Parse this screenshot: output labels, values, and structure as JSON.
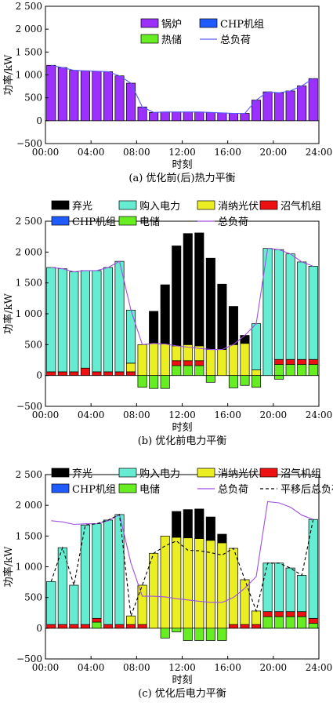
{
  "chart_data": [
    {
      "type": "bar",
      "caption": "(a) 优化前(后)热力平衡",
      "xlabel": "时刻",
      "ylabel": "功率/kW",
      "ylim": [
        -500,
        2500
      ],
      "yticks": [
        -500,
        0,
        500,
        1000,
        1500,
        2000,
        2500
      ],
      "ytick_labels": [
        "−500",
        "0",
        "500",
        "1 000",
        "1 500",
        "2 000",
        "2 500"
      ],
      "xticks": [
        0,
        4,
        8,
        12,
        16,
        20,
        24
      ],
      "xtick_labels": [
        "00:00",
        "04:00",
        "08:00",
        "12:00",
        "16:00",
        "20:00",
        "24:00"
      ],
      "legend_cols": 2,
      "legend": [
        {
          "key": "boiler",
          "label": "锅炉",
          "kind": "bar",
          "color": "#9b30ff"
        },
        {
          "key": "chp",
          "label": "CHP机组",
          "kind": "bar",
          "color": "#1f5bff"
        },
        {
          "key": "storage",
          "label": "热储",
          "kind": "bar",
          "color": "#66ee22"
        },
        {
          "key": "total",
          "label": "总负荷",
          "kind": "line",
          "color": "#5a5aff"
        }
      ],
      "stack_series": [
        {
          "key": "boiler",
          "color": "#9b30ff",
          "values": [
            1210,
            1160,
            1100,
            1090,
            1080,
            1070,
            980,
            820,
            300,
            180,
            190,
            190,
            190,
            190,
            180,
            170,
            160,
            160,
            450,
            630,
            610,
            650,
            760,
            920
          ]
        },
        {
          "key": "chp",
          "color": "#1f5bff",
          "values": [
            0,
            0,
            0,
            0,
            0,
            0,
            0,
            0,
            0,
            0,
            0,
            0,
            0,
            0,
            0,
            0,
            0,
            0,
            0,
            0,
            0,
            0,
            0,
            0
          ]
        }
      ],
      "neg_series": [
        {
          "key": "storage",
          "color": "#66ee22",
          "values": [
            0,
            0,
            0,
            0,
            0,
            0,
            0,
            0,
            0,
            0,
            0,
            0,
            0,
            0,
            0,
            0,
            0,
            0,
            0,
            0,
            0,
            0,
            0,
            0
          ]
        }
      ],
      "line_series": [
        {
          "key": "total",
          "color": "#5a5aff",
          "dash": "",
          "values": [
            1210,
            1160,
            1100,
            1090,
            1080,
            1070,
            980,
            820,
            300,
            180,
            190,
            190,
            190,
            190,
            180,
            170,
            160,
            160,
            450,
            630,
            610,
            650,
            760,
            920
          ]
        }
      ]
    },
    {
      "type": "bar",
      "caption": "(b) 优化前电力平衡",
      "xlabel": "时刻",
      "ylabel": "功率/kW",
      "ylim": [
        -500,
        2500
      ],
      "yticks": [
        -500,
        0,
        500,
        1000,
        1500,
        2000,
        2500
      ],
      "ytick_labels": [
        "−500",
        "0",
        "500",
        "1 000",
        "1 500",
        "2 000",
        "2 500"
      ],
      "xticks": [
        0,
        4,
        8,
        12,
        16,
        20,
        24
      ],
      "xtick_labels": [
        "00:00",
        "04:00",
        "08:00",
        "12:00",
        "16:00",
        "20:00",
        "24:00"
      ],
      "legend_cols": 4,
      "legend": [
        {
          "key": "curtail",
          "label": "弃光",
          "kind": "bar",
          "color": "#000000"
        },
        {
          "key": "grid",
          "label": "购入电力",
          "kind": "bar",
          "color": "#66ecd0"
        },
        {
          "key": "pv",
          "label": "消纳光伏",
          "kind": "bar",
          "color": "#eaee22"
        },
        {
          "key": "biogas",
          "label": "沼气机组",
          "kind": "bar",
          "color": "#ee1111"
        },
        {
          "key": "chp",
          "label": "CHP机组",
          "kind": "bar",
          "color": "#1f5bff"
        },
        {
          "key": "battery",
          "label": "电储",
          "kind": "bar",
          "color": "#66ee22"
        },
        {
          "key": "total",
          "label": "总负荷",
          "kind": "line",
          "color": "#a050e0"
        }
      ],
      "stack_series": [
        {
          "key": "battery",
          "color": "#66ee22",
          "values": [
            0,
            0,
            0,
            0,
            0,
            0,
            0,
            0,
            0,
            0,
            0,
            160,
            160,
            160,
            0,
            0,
            0,
            0,
            0,
            0,
            180,
            180,
            180,
            180
          ]
        },
        {
          "key": "biogas",
          "color": "#ee1111",
          "values": [
            60,
            60,
            60,
            120,
            60,
            60,
            60,
            60,
            0,
            0,
            0,
            80,
            80,
            80,
            0,
            0,
            0,
            0,
            0,
            0,
            80,
            80,
            80,
            80
          ]
        },
        {
          "key": "pv",
          "color": "#eaee22",
          "values": [
            0,
            0,
            0,
            0,
            0,
            0,
            0,
            140,
            500,
            520,
            510,
            240,
            260,
            240,
            420,
            420,
            500,
            520,
            90,
            0,
            0,
            0,
            0,
            0
          ]
        },
        {
          "key": "grid",
          "color": "#66ecd0",
          "values": [
            1690,
            1670,
            1620,
            1580,
            1640,
            1690,
            1790,
            860,
            0,
            0,
            0,
            0,
            0,
            0,
            0,
            0,
            0,
            0,
            750,
            2060,
            1780,
            1710,
            1580,
            1510
          ]
        },
        {
          "key": "curtail",
          "color": "#000000",
          "values": [
            0,
            0,
            0,
            0,
            0,
            0,
            0,
            0,
            0,
            520,
            960,
            1620,
            1800,
            1830,
            1480,
            1060,
            620,
            130,
            0,
            0,
            0,
            0,
            0,
            0
          ]
        }
      ],
      "neg_series": [
        {
          "key": "battery",
          "color": "#66ee22",
          "values": [
            0,
            0,
            0,
            0,
            0,
            0,
            0,
            0,
            -190,
            -210,
            -210,
            0,
            0,
            0,
            -110,
            0,
            -200,
            -160,
            -190,
            0,
            -60,
            0,
            0,
            0
          ]
        }
      ],
      "line_series": [
        {
          "key": "total",
          "color": "#a050e0",
          "dash": "",
          "values": [
            1750,
            1730,
            1680,
            1700,
            1700,
            1750,
            1850,
            1060,
            500,
            520,
            510,
            480,
            460,
            440,
            420,
            420,
            500,
            650,
            840,
            2060,
            2040,
            1970,
            1840,
            1770
          ]
        }
      ]
    },
    {
      "type": "bar",
      "caption": "(c) 优化后电力平衡",
      "xlabel": "时刻",
      "ylabel": "功率/kW",
      "ylim": [
        -500,
        2500
      ],
      "yticks": [
        -500,
        0,
        500,
        1000,
        1500,
        2000,
        2500
      ],
      "ytick_labels": [
        "−500",
        "0",
        "500",
        "1 000",
        "1 500",
        "2 000",
        "2 500"
      ],
      "xticks": [
        0,
        4,
        8,
        12,
        16,
        20,
        24
      ],
      "xtick_labels": [
        "00:00",
        "04:00",
        "08:00",
        "12:00",
        "16:00",
        "20:00",
        "24:00"
      ],
      "legend_cols": 4,
      "legend": [
        {
          "key": "curtail",
          "label": "弃光",
          "kind": "bar",
          "color": "#000000"
        },
        {
          "key": "grid",
          "label": "购入电力",
          "kind": "bar",
          "color": "#66ecd0"
        },
        {
          "key": "pv",
          "label": "消纳光伏",
          "kind": "bar",
          "color": "#eaee22"
        },
        {
          "key": "biogas",
          "label": "沼气机组",
          "kind": "bar",
          "color": "#ee1111"
        },
        {
          "key": "chp",
          "label": "CHP机组",
          "kind": "bar",
          "color": "#1f5bff"
        },
        {
          "key": "battery",
          "label": "电储",
          "kind": "bar",
          "color": "#66ee22"
        },
        {
          "key": "total",
          "label": "总负荷",
          "kind": "line",
          "color": "#a050e0"
        },
        {
          "key": "shifted",
          "label": "平移后总负荷",
          "kind": "dash",
          "color": "#000000"
        }
      ],
      "stack_series": [
        {
          "key": "battery",
          "color": "#66ee22",
          "values": [
            0,
            0,
            0,
            0,
            100,
            0,
            0,
            0,
            0,
            0,
            0,
            0,
            0,
            0,
            0,
            0,
            0,
            0,
            0,
            190,
            190,
            190,
            190,
            80
          ]
        },
        {
          "key": "biogas",
          "color": "#ee1111",
          "values": [
            60,
            60,
            60,
            60,
            60,
            60,
            60,
            60,
            60,
            0,
            0,
            0,
            0,
            0,
            0,
            0,
            60,
            60,
            60,
            80,
            80,
            80,
            80,
            80
          ]
        },
        {
          "key": "pv",
          "color": "#eaee22",
          "values": [
            0,
            0,
            0,
            0,
            0,
            0,
            0,
            140,
            640,
            1220,
            1500,
            1480,
            1470,
            1460,
            1430,
            1390,
            1240,
            730,
            220,
            0,
            0,
            0,
            0,
            0
          ]
        },
        {
          "key": "grid",
          "color": "#66ecd0",
          "values": [
            700,
            1250,
            640,
            1620,
            1540,
            1700,
            1790,
            0,
            0,
            0,
            0,
            0,
            0,
            0,
            0,
            0,
            0,
            0,
            0,
            790,
            790,
            710,
            590,
            1610
          ]
        },
        {
          "key": "curtail",
          "color": "#000000",
          "values": [
            0,
            0,
            0,
            0,
            0,
            0,
            0,
            0,
            0,
            0,
            0,
            420,
            460,
            480,
            380,
            140,
            0,
            0,
            0,
            0,
            0,
            0,
            0,
            0
          ]
        }
      ],
      "neg_series": [
        {
          "key": "battery",
          "color": "#66ee22",
          "values": [
            0,
            0,
            0,
            0,
            0,
            0,
            0,
            0,
            0,
            0,
            -160,
            -60,
            -200,
            -200,
            -200,
            -200,
            0,
            0,
            0,
            0,
            0,
            0,
            0,
            0
          ]
        }
      ],
      "line_series": [
        {
          "key": "total",
          "color": "#a050e0",
          "dash": "",
          "values": [
            1750,
            1730,
            1690,
            1700,
            1700,
            1750,
            1850,
            1060,
            520,
            520,
            510,
            480,
            460,
            440,
            420,
            420,
            500,
            650,
            840,
            2060,
            2040,
            1970,
            1840,
            1770
          ]
        },
        {
          "key": "shifted",
          "color": "#000000",
          "dash": "4,3",
          "values": [
            760,
            1310,
            700,
            1680,
            1700,
            1760,
            1850,
            200,
            700,
            1220,
            1340,
            1420,
            1270,
            1260,
            1230,
            1190,
            1300,
            790,
            280,
            1060,
            1060,
            980,
            860,
            1770
          ]
        }
      ]
    }
  ]
}
